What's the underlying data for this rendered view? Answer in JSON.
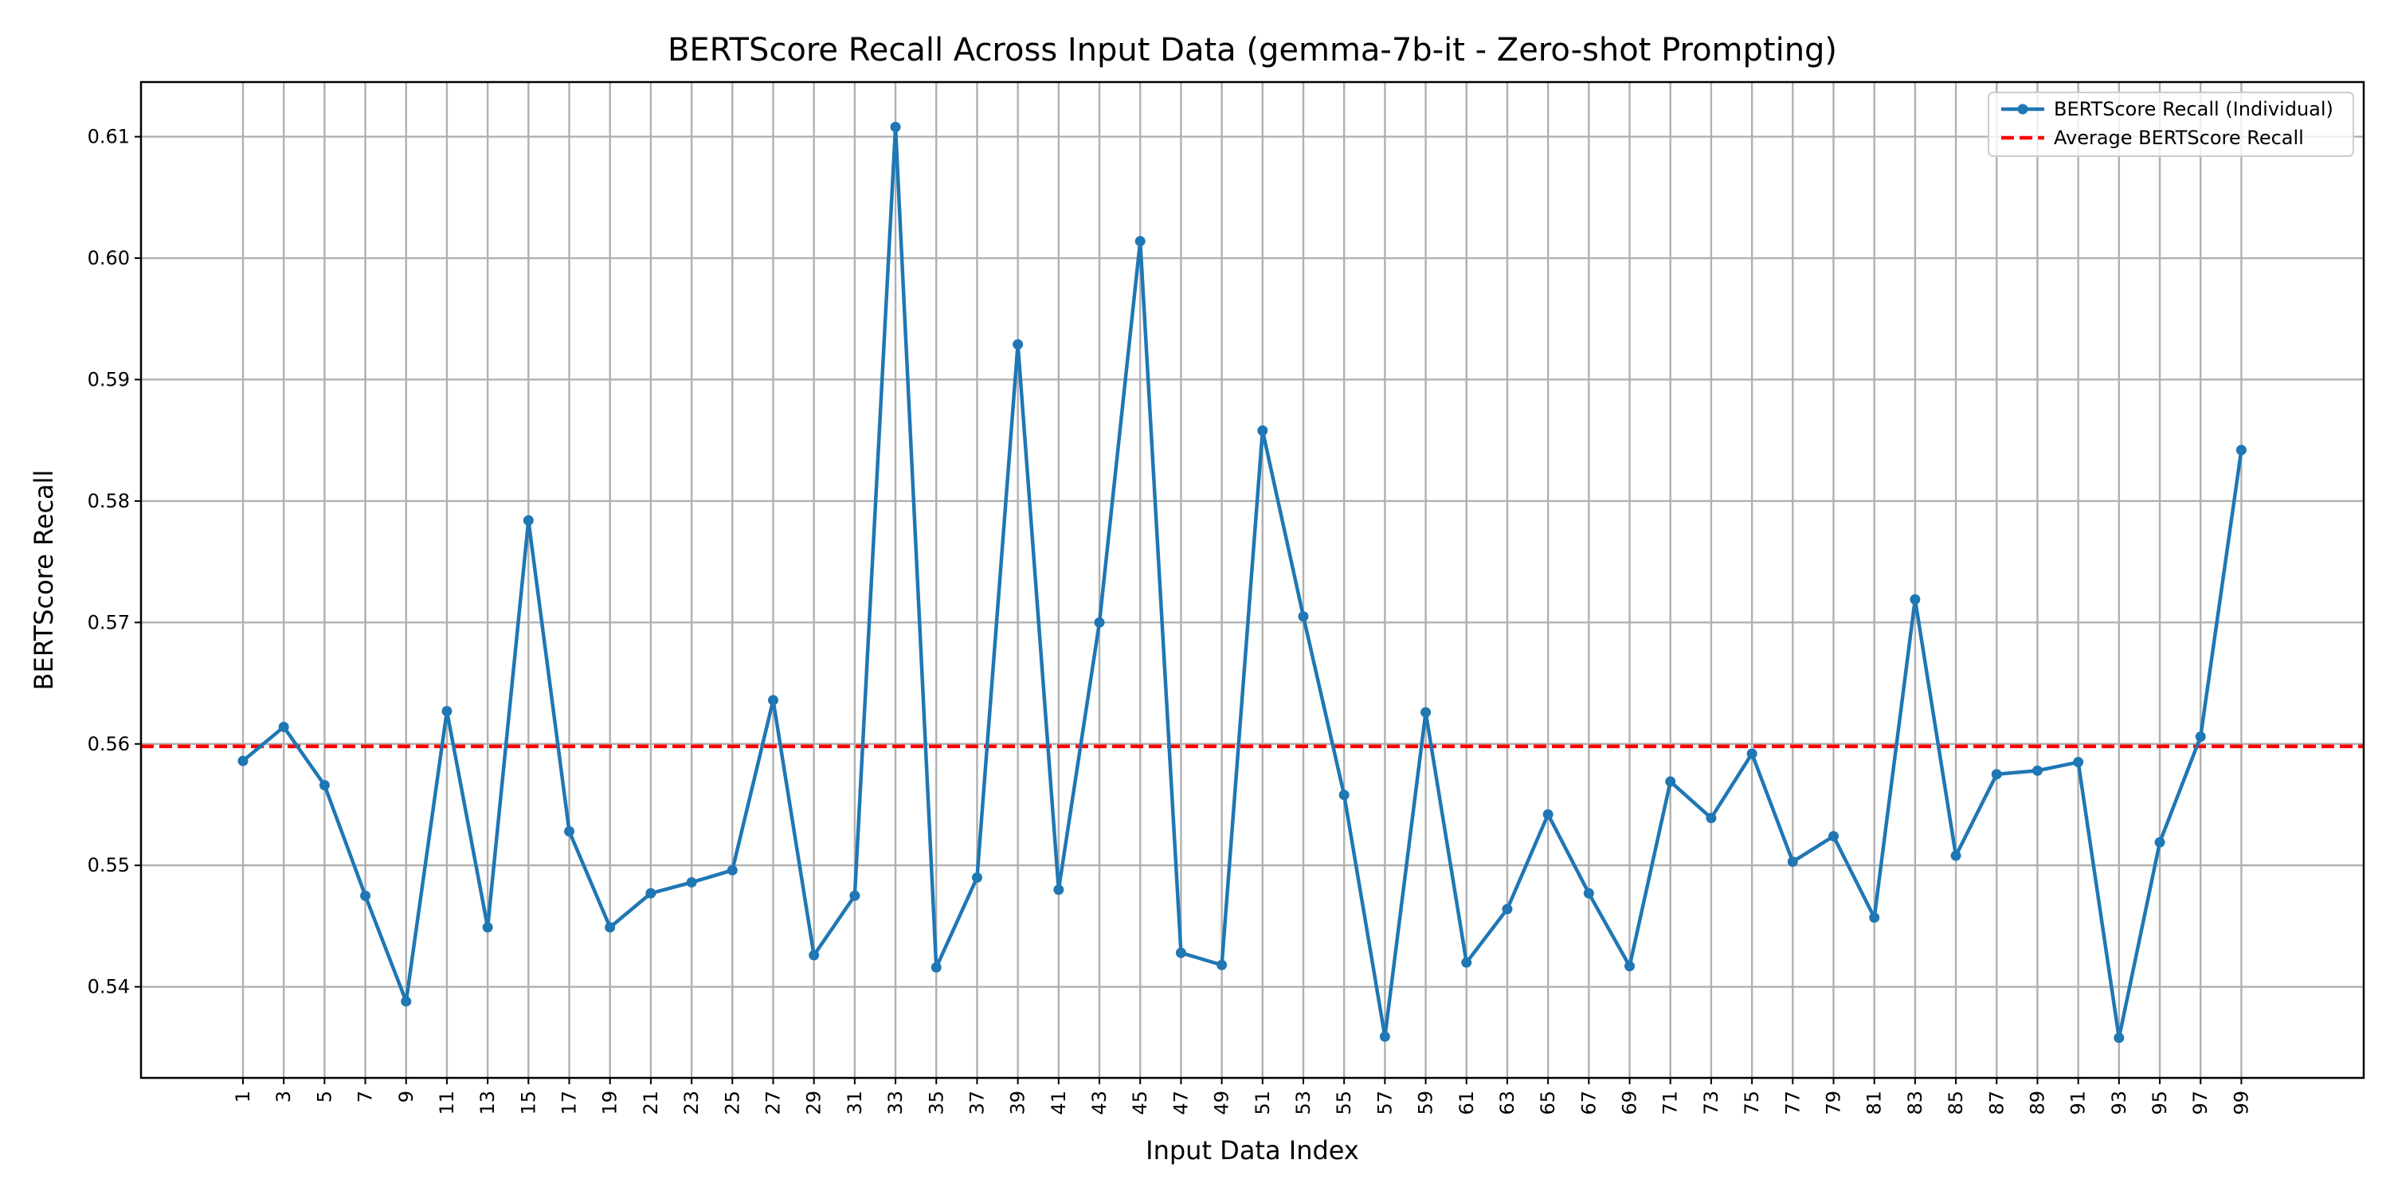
{
  "chart_data": {
    "type": "line",
    "title": "BERTScore Recall Across Input Data (gemma-7b-it - Zero-shot Prompting)",
    "xlabel": "Input Data Index",
    "ylabel": "BERTScore Recall",
    "x": [
      1,
      3,
      5,
      7,
      9,
      11,
      13,
      15,
      17,
      19,
      21,
      23,
      25,
      27,
      29,
      31,
      33,
      35,
      37,
      39,
      41,
      43,
      45,
      47,
      49,
      51,
      53,
      55,
      57,
      59,
      61,
      63,
      65,
      67,
      69,
      71,
      73,
      75,
      77,
      79,
      81,
      83,
      85,
      87,
      89,
      91,
      93,
      95,
      97,
      99
    ],
    "xticks": [
      1,
      3,
      5,
      7,
      9,
      11,
      13,
      15,
      17,
      19,
      21,
      23,
      25,
      27,
      29,
      31,
      33,
      35,
      37,
      39,
      41,
      43,
      45,
      47,
      49,
      51,
      53,
      55,
      57,
      59,
      61,
      63,
      65,
      67,
      69,
      71,
      73,
      75,
      77,
      79,
      81,
      83,
      85,
      87,
      89,
      91,
      93,
      95,
      97,
      99
    ],
    "xlim": [
      -4.0,
      105.0
    ],
    "ylim": [
      0.5325,
      0.6145
    ],
    "yticks": [
      0.54,
      0.55,
      0.56,
      0.57,
      0.58,
      0.59,
      0.6,
      0.61
    ],
    "ytick_labels": [
      "0.54",
      "0.55",
      "0.56",
      "0.57",
      "0.58",
      "0.59",
      "0.60",
      "0.61"
    ],
    "grid": true,
    "legend_position": "top-right",
    "series": [
      {
        "name": "BERTScore Recall (Individual)",
        "color": "#1f77b4",
        "marker": "circle",
        "values": [
          0.5586,
          0.5614,
          0.5566,
          0.5475,
          0.5388,
          0.5627,
          0.5449,
          0.5784,
          0.5528,
          0.5449,
          0.5477,
          0.5486,
          0.5496,
          0.5636,
          0.5426,
          0.5475,
          0.6108,
          0.5416,
          0.549,
          0.5929,
          0.548,
          0.57,
          0.6014,
          0.5428,
          0.5418,
          0.5858,
          0.5705,
          0.5558,
          0.5359,
          0.5626,
          0.542,
          0.5464,
          0.5542,
          0.5477,
          0.5417,
          0.5569,
          0.5539,
          0.5592,
          0.5503,
          0.5524,
          0.5457,
          0.5719,
          0.5508,
          0.5575,
          0.5578,
          0.5585,
          0.5358,
          0.5519,
          0.5606,
          0.5842
        ]
      }
    ],
    "reference_lines": [
      {
        "name": "Average BERTScore Recall",
        "value": 0.5598,
        "color": "#ff0000",
        "style": "dashed"
      }
    ]
  }
}
